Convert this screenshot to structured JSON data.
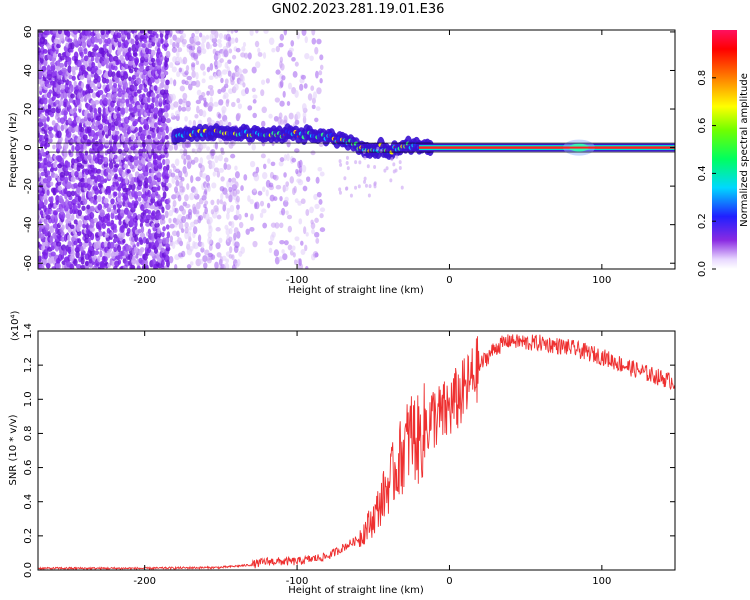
{
  "title": "GN02.2023.281.19.01.E36",
  "chart_data": [
    {
      "type": "heatmap",
      "xlabel": "Height of straight line (km)",
      "ylabel": "Frequency (Hz)",
      "xlim": [
        -270,
        148
      ],
      "ylim": [
        -63,
        61
      ],
      "xticks": [
        -200,
        -100,
        0,
        100
      ],
      "yticks": [
        60,
        40,
        20,
        0,
        -20,
        -40,
        -60
      ],
      "colorbar": {
        "label": "Normalized spectral amplitude",
        "range": [
          0,
          1
        ],
        "ticks": [
          "0.0",
          "0.2",
          "0.4",
          "0.6",
          "0.8"
        ]
      },
      "ridge": {
        "x": [
          -180,
          -150,
          -120,
          -100,
          -85,
          -70,
          -60,
          -50,
          -45,
          -40,
          -30,
          -20,
          -10,
          0,
          50,
          80,
          100,
          148
        ],
        "y": [
          7,
          8,
          7,
          7,
          6,
          4,
          1,
          -1,
          0,
          -2,
          1,
          1,
          0,
          0,
          0,
          0,
          0,
          0
        ]
      }
    },
    {
      "type": "line",
      "xlabel": "Height of straight line (km)",
      "ylabel": "SNR (10 * v/v)",
      "multiplier_label": "(x10⁴)",
      "xlim": [
        -270,
        148
      ],
      "ylim": [
        0,
        1.4
      ],
      "xticks": [
        -200,
        -100,
        0,
        100
      ],
      "yticks": [
        "0.0",
        "0.2",
        "0.4",
        "0.6",
        "0.8",
        "1.0",
        "1.2",
        "1.4"
      ],
      "series": [
        {
          "color": "#ee3030",
          "x": [
            -270,
            -200,
            -150,
            -130,
            -120,
            -100,
            -80,
            -60,
            -50,
            -40,
            -30,
            -25,
            -20,
            -15,
            -10,
            -5,
            0,
            10,
            20,
            30,
            40,
            50,
            60,
            80,
            100,
            120,
            130,
            148
          ],
          "y": [
            0.01,
            0.01,
            0.015,
            0.03,
            0.05,
            0.05,
            0.08,
            0.18,
            0.3,
            0.5,
            0.7,
            0.8,
            0.75,
            0.85,
            0.9,
            0.9,
            0.95,
            1.05,
            1.2,
            1.3,
            1.35,
            1.33,
            1.33,
            1.3,
            1.25,
            1.18,
            1.15,
            1.1
          ]
        }
      ]
    }
  ]
}
